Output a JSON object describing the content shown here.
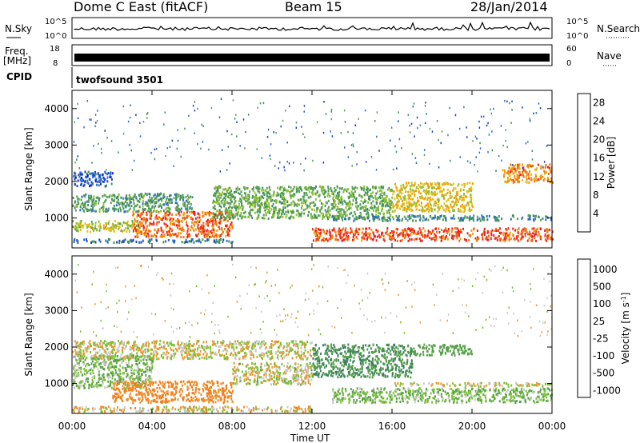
{
  "header": {
    "radar": "Dome C East (fitACF)",
    "beam": "Beam 15",
    "date": "28/Jan/2014"
  },
  "strip_labels": {
    "nsky": "N.Sky",
    "nsearch": "N.Search",
    "freq_line1": "Freq.",
    "freq_line2": "[MHz]",
    "nave": "Nave",
    "cpid": "CPID",
    "cpid_value": "twofsound 3501"
  },
  "strip_ticks": {
    "noise_left_top": "10^5",
    "noise_left_bottom": "10^0",
    "noise_right_top": "10^5",
    "noise_right_bottom": "10^0",
    "freq_left_top": "18",
    "freq_left_bottom": "8",
    "nave_right_top": "60",
    "nave_right_bottom": "0"
  },
  "colors": {
    "power_scale": [
      "#1010ee",
      "#1840b8",
      "#2a6ad0",
      "#3f8f5c",
      "#5aa05a",
      "#8cbf30",
      "#e0c020",
      "#f0a000",
      "#f07010",
      "#ee2020"
    ],
    "velocity_scale": [
      "#1a3fb0",
      "#2e6ea0",
      "#3a8060",
      "#56a048",
      "#7ac034",
      "#c8c8c8",
      "#c8c8c8",
      "#e89a30",
      "#f08020",
      "#f05010",
      "#e82010"
    ]
  },
  "chart_data": [
    {
      "type": "heatmap",
      "panel": "power",
      "xlabel": "",
      "ylabel": "Slant Range [km]",
      "x_ticks": [
        "00:00",
        "04:00",
        "08:00",
        "12:00",
        "16:00",
        "20:00",
        "00:00"
      ],
      "y_ticks": [
        "1000",
        "2000",
        "3000",
        "4000"
      ],
      "xlim_hours": [
        0,
        24
      ],
      "ylim_km": [
        180,
        4500
      ],
      "colorbar": {
        "label": "Power [dB]",
        "ticks": [
          "4",
          "8",
          "12",
          "16",
          "20",
          "24",
          "28"
        ],
        "range": [
          0,
          30
        ]
      },
      "bands": [
        {
          "t_start": 0.0,
          "t_end": 8.0,
          "range_km": [
            350,
            450
          ],
          "value_db": 8
        },
        {
          "t_start": 0.0,
          "t_end": 3.5,
          "range_km": [
            650,
            950
          ],
          "value_db": 18
        },
        {
          "t_start": 3.0,
          "t_end": 8.0,
          "range_km": [
            500,
            1200
          ],
          "value_db": 26
        },
        {
          "t_start": 0.0,
          "t_end": 6.0,
          "range_km": [
            1200,
            1700
          ],
          "value_db": 12
        },
        {
          "t_start": 0.0,
          "t_end": 2.0,
          "range_km": [
            1900,
            2300
          ],
          "value_db": 6
        },
        {
          "t_start": 7.0,
          "t_end": 16.0,
          "range_km": [
            1000,
            1900
          ],
          "value_db": 14
        },
        {
          "t_start": 16.0,
          "t_end": 20.0,
          "range_km": [
            1200,
            2000
          ],
          "value_db": 20
        },
        {
          "t_start": 12.0,
          "t_end": 24.0,
          "range_km": [
            400,
            750
          ],
          "value_db": 27
        },
        {
          "t_start": 13.0,
          "t_end": 24.0,
          "range_km": [
            950,
            1100
          ],
          "value_db": 10
        },
        {
          "t_start": 21.5,
          "t_end": 24.0,
          "range_km": [
            2000,
            2500
          ],
          "value_db": 24
        }
      ]
    },
    {
      "type": "heatmap",
      "panel": "velocity",
      "xlabel": "Time UT",
      "ylabel": "Slant Range [km]",
      "x_ticks": [
        "00:00",
        "04:00",
        "08:00",
        "12:00",
        "16:00",
        "20:00",
        "00:00"
      ],
      "y_ticks": [
        "1000",
        "2000",
        "3000",
        "4000"
      ],
      "xlim_hours": [
        0,
        24
      ],
      "ylim_km": [
        180,
        4500
      ],
      "colorbar": {
        "label_main": "Velocity [m s",
        "label_sup": "-1",
        "label_end": "]",
        "ticks": [
          "1000",
          "500",
          "100",
          "25",
          "-25",
          "-100",
          "-500",
          "-1000"
        ]
      },
      "bands": [
        {
          "t_start": 0.0,
          "t_end": 12.0,
          "range_km": [
            250,
            400
          ],
          "value_ms": -20
        },
        {
          "t_start": 0.0,
          "t_end": 4.0,
          "range_km": [
            900,
            1800
          ],
          "value_ms": 80
        },
        {
          "t_start": 2.0,
          "t_end": 8.0,
          "range_km": [
            500,
            1100
          ],
          "value_ms": -150
        },
        {
          "t_start": 0.0,
          "t_end": 12.0,
          "range_km": [
            1700,
            2200
          ],
          "value_ms": 0
        },
        {
          "t_start": 8.0,
          "t_end": 12.0,
          "range_km": [
            1000,
            1600
          ],
          "value_ms": 10
        },
        {
          "t_start": 12.0,
          "t_end": 17.0,
          "range_km": [
            1200,
            2100
          ],
          "value_ms": 300
        },
        {
          "t_start": 17.0,
          "t_end": 20.0,
          "range_km": [
            1800,
            2100
          ],
          "value_ms": 200
        },
        {
          "t_start": 13.0,
          "t_end": 24.0,
          "range_km": [
            500,
            900
          ],
          "value_ms": 90
        },
        {
          "t_start": 16.0,
          "t_end": 24.0,
          "range_km": [
            950,
            1050
          ],
          "value_ms": 0
        }
      ]
    }
  ]
}
